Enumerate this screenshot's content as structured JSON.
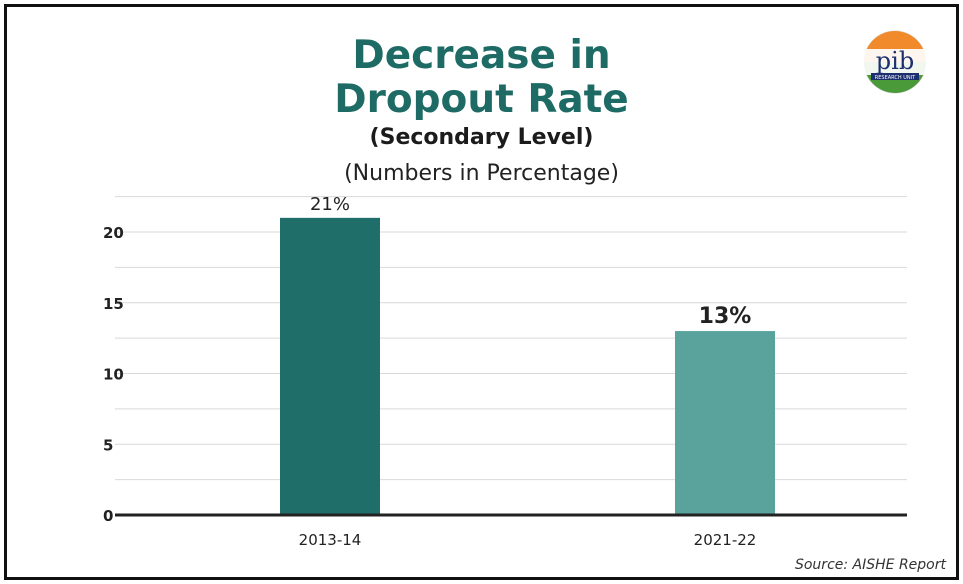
{
  "title_line1": "Decrease in",
  "title_line2": "Dropout Rate",
  "subtitle": "(Secondary Level)",
  "units_note": "(Numbers in Percentage)",
  "source": "Source: AISHE Report",
  "logo": {
    "icon": "pib-research-unit-logo",
    "text": "pib",
    "tag": "RESEARCH UNIT"
  },
  "colors": {
    "title": "#1e6b66",
    "bar_1": "#1f6e69",
    "bar_2": "#5aa39d",
    "axis": "#222222",
    "grid": "#d9d9d9"
  },
  "chart_data": {
    "type": "bar",
    "title": "Decrease in Dropout Rate",
    "subtitle": "(Secondary Level)",
    "categories": [
      "2013-14",
      "2021-22"
    ],
    "values": [
      21,
      13
    ],
    "data_labels": [
      "21%",
      "13%"
    ],
    "yticks": [
      "0",
      "5",
      "10",
      "15",
      "20"
    ],
    "ylim": [
      0,
      21
    ],
    "xlabel": "",
    "ylabel": "",
    "grid": true,
    "legend": "none"
  }
}
